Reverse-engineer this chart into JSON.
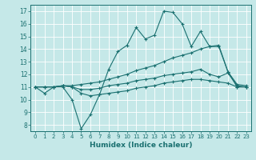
{
  "xlabel": "Humidex (Indice chaleur)",
  "bg_color": "#c5e8e8",
  "line_color": "#1a7070",
  "grid_color": "#ffffff",
  "xlim": [
    -0.5,
    23.5
  ],
  "ylim": [
    7.5,
    17.5
  ],
  "xticks": [
    0,
    1,
    2,
    3,
    4,
    5,
    6,
    7,
    8,
    9,
    10,
    11,
    12,
    13,
    14,
    15,
    16,
    17,
    18,
    19,
    20,
    21,
    22,
    23
  ],
  "yticks": [
    8,
    9,
    10,
    11,
    12,
    13,
    14,
    15,
    16,
    17
  ],
  "series": [
    [
      11.0,
      10.5,
      11.0,
      11.0,
      10.0,
      7.7,
      8.8,
      10.4,
      12.4,
      13.8,
      14.3,
      15.7,
      14.8,
      15.1,
      17.0,
      16.9,
      16.0,
      14.2,
      15.4,
      14.2,
      14.3,
      12.2,
      11.0,
      11.0
    ],
    [
      11.0,
      11.0,
      11.0,
      11.1,
      11.1,
      11.2,
      11.3,
      11.4,
      11.6,
      11.8,
      12.0,
      12.3,
      12.5,
      12.7,
      13.0,
      13.3,
      13.5,
      13.7,
      14.0,
      14.2,
      14.2,
      12.2,
      11.2,
      11.1
    ],
    [
      11.0,
      11.0,
      11.0,
      11.1,
      11.0,
      10.8,
      10.8,
      10.9,
      11.1,
      11.2,
      11.3,
      11.5,
      11.6,
      11.7,
      11.9,
      12.0,
      12.1,
      12.2,
      12.4,
      12.0,
      11.8,
      12.1,
      11.1,
      11.0
    ],
    [
      11.0,
      11.0,
      11.0,
      11.1,
      11.0,
      10.5,
      10.3,
      10.4,
      10.5,
      10.6,
      10.7,
      10.9,
      11.0,
      11.1,
      11.3,
      11.4,
      11.5,
      11.6,
      11.6,
      11.5,
      11.4,
      11.3,
      11.0,
      11.0
    ]
  ]
}
